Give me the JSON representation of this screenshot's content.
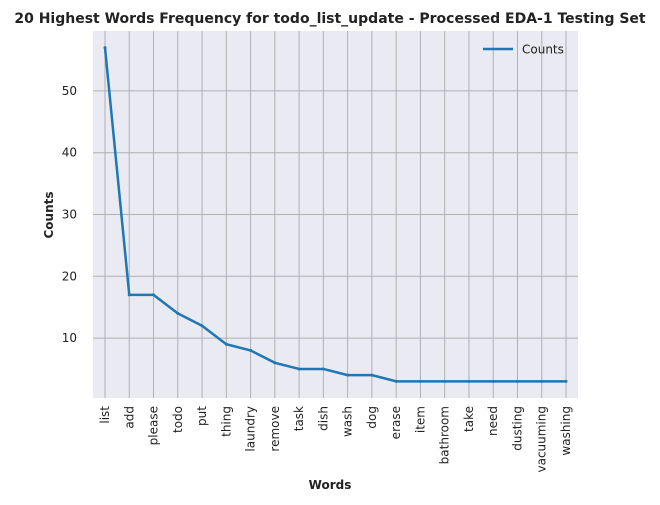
{
  "chart_data": {
    "type": "line",
    "title": "20 Highest Words Frequency for todo_list_update - Processed EDA-1 Testing Set",
    "xlabel": "Words",
    "ylabel": "Counts",
    "categories": [
      "list",
      "add",
      "please",
      "todo",
      "put",
      "thing",
      "laundry",
      "remove",
      "task",
      "dish",
      "wash",
      "dog",
      "erase",
      "item",
      "bathroom",
      "take",
      "need",
      "dusting",
      "vacuuming",
      "washing"
    ],
    "series": [
      {
        "name": "Counts",
        "values": [
          57,
          17,
          17,
          14,
          12,
          9,
          8,
          6,
          5,
          5,
          4,
          4,
          3,
          3,
          3,
          3,
          3,
          3,
          3,
          3
        ]
      }
    ],
    "ylim": [
      0.3,
      59.7
    ],
    "yticks": [
      10,
      20,
      30,
      40,
      50
    ],
    "grid": true,
    "legend_position": "top-right",
    "colors": {
      "line": "#1f77b4",
      "plot_background": "#eaeaf2",
      "grid": "#b0b0b0",
      "text": "#222222"
    }
  }
}
